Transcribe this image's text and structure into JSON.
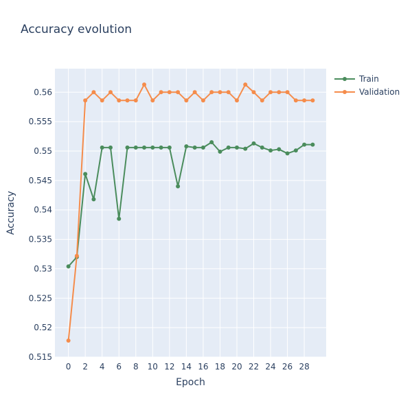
{
  "chart_data": {
    "type": "line",
    "title": "Accuracy evolution",
    "xlabel": "Epoch",
    "ylabel": "Accuracy",
    "xlim": [
      -1.6,
      30.6
    ],
    "ylim": [
      0.515,
      0.564
    ],
    "xticks": [
      0,
      2,
      4,
      6,
      8,
      10,
      12,
      14,
      16,
      18,
      20,
      22,
      24,
      26,
      28
    ],
    "yticks": [
      0.515,
      0.52,
      0.525,
      0.53,
      0.535,
      0.54,
      0.545,
      0.55,
      0.555,
      0.56
    ],
    "ytick_labels": [
      "0.515",
      "0.52",
      "0.525",
      "0.53",
      "0.535",
      "0.54",
      "0.545",
      "0.55",
      "0.555",
      "0.56"
    ],
    "grid": true,
    "legend_position": "top-right",
    "x": [
      0,
      1,
      2,
      3,
      4,
      5,
      6,
      7,
      8,
      9,
      10,
      11,
      12,
      13,
      14,
      15,
      16,
      17,
      18,
      19,
      20,
      21,
      22,
      23,
      24,
      25,
      26,
      27,
      28,
      29
    ],
    "series": [
      {
        "name": "Train",
        "color": "#4a8c5c",
        "values": [
          0.5304,
          0.532,
          0.5461,
          0.5418,
          0.5506,
          0.5506,
          0.5385,
          0.5506,
          0.5506,
          0.5506,
          0.5506,
          0.5506,
          0.5506,
          0.544,
          0.5508,
          0.5506,
          0.5506,
          0.5515,
          0.5499,
          0.5506,
          0.5506,
          0.5504,
          0.5513,
          0.5506,
          0.5501,
          0.5503,
          0.5496,
          0.5501,
          0.5511,
          0.5511
        ]
      },
      {
        "name": "Validation",
        "color": "#f58c4b",
        "values": [
          0.5178,
          0.5322,
          0.5586,
          0.56,
          0.5586,
          0.56,
          0.5586,
          0.5586,
          0.5586,
          0.5613,
          0.5586,
          0.56,
          0.56,
          0.56,
          0.5586,
          0.56,
          0.5586,
          0.56,
          0.56,
          0.56,
          0.5586,
          0.5613,
          0.56,
          0.5586,
          0.56,
          0.56,
          0.56,
          0.5586,
          0.5586,
          0.5586
        ]
      }
    ]
  }
}
